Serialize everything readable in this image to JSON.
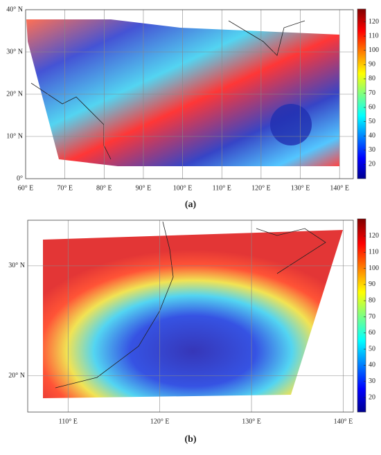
{
  "panels": [
    {
      "label": "(a)",
      "xlim": [
        60,
        143.5
      ],
      "ylim": [
        0,
        40
      ],
      "xticks": [
        {
          "value": 60,
          "label": "60° E"
        },
        {
          "value": 70,
          "label": "70° E"
        },
        {
          "value": 80,
          "label": "80° E"
        },
        {
          "value": 90,
          "label": "90° E"
        },
        {
          "value": 100,
          "label": "100° E"
        },
        {
          "value": 110,
          "label": "110° E"
        },
        {
          "value": 120,
          "label": "120° E"
        },
        {
          "value": 130,
          "label": "130° E"
        },
        {
          "value": 140,
          "label": "140° E"
        }
      ],
      "yticks": [
        {
          "value": 0,
          "label": "0°"
        },
        {
          "value": 10,
          "label": "10° N"
        },
        {
          "value": 20,
          "label": "20° N"
        },
        {
          "value": 30,
          "label": "30° N"
        },
        {
          "value": 40,
          "label": "40° N"
        }
      ],
      "colorbar": {
        "lim": [
          10,
          129
        ],
        "ticks": [
          20,
          30,
          40,
          50,
          60,
          70,
          80,
          90,
          100,
          110,
          120
        ]
      }
    },
    {
      "label": "(b)",
      "xlim": [
        105.6,
        141.1
      ],
      "ylim": [
        16.7,
        34.15
      ],
      "xticks": [
        {
          "value": 110,
          "label": "110° E"
        },
        {
          "value": 120,
          "label": "120° E"
        },
        {
          "value": 130,
          "label": "130° E"
        },
        {
          "value": 140,
          "label": "140° E"
        }
      ],
      "yticks": [
        {
          "value": 20,
          "label": "20° N"
        },
        {
          "value": 30,
          "label": "30° N"
        }
      ],
      "colorbar": {
        "lim": [
          11,
          130.7
        ],
        "ticks": [
          20,
          30,
          40,
          50,
          60,
          70,
          80,
          90,
          100,
          110,
          120
        ]
      }
    }
  ]
}
